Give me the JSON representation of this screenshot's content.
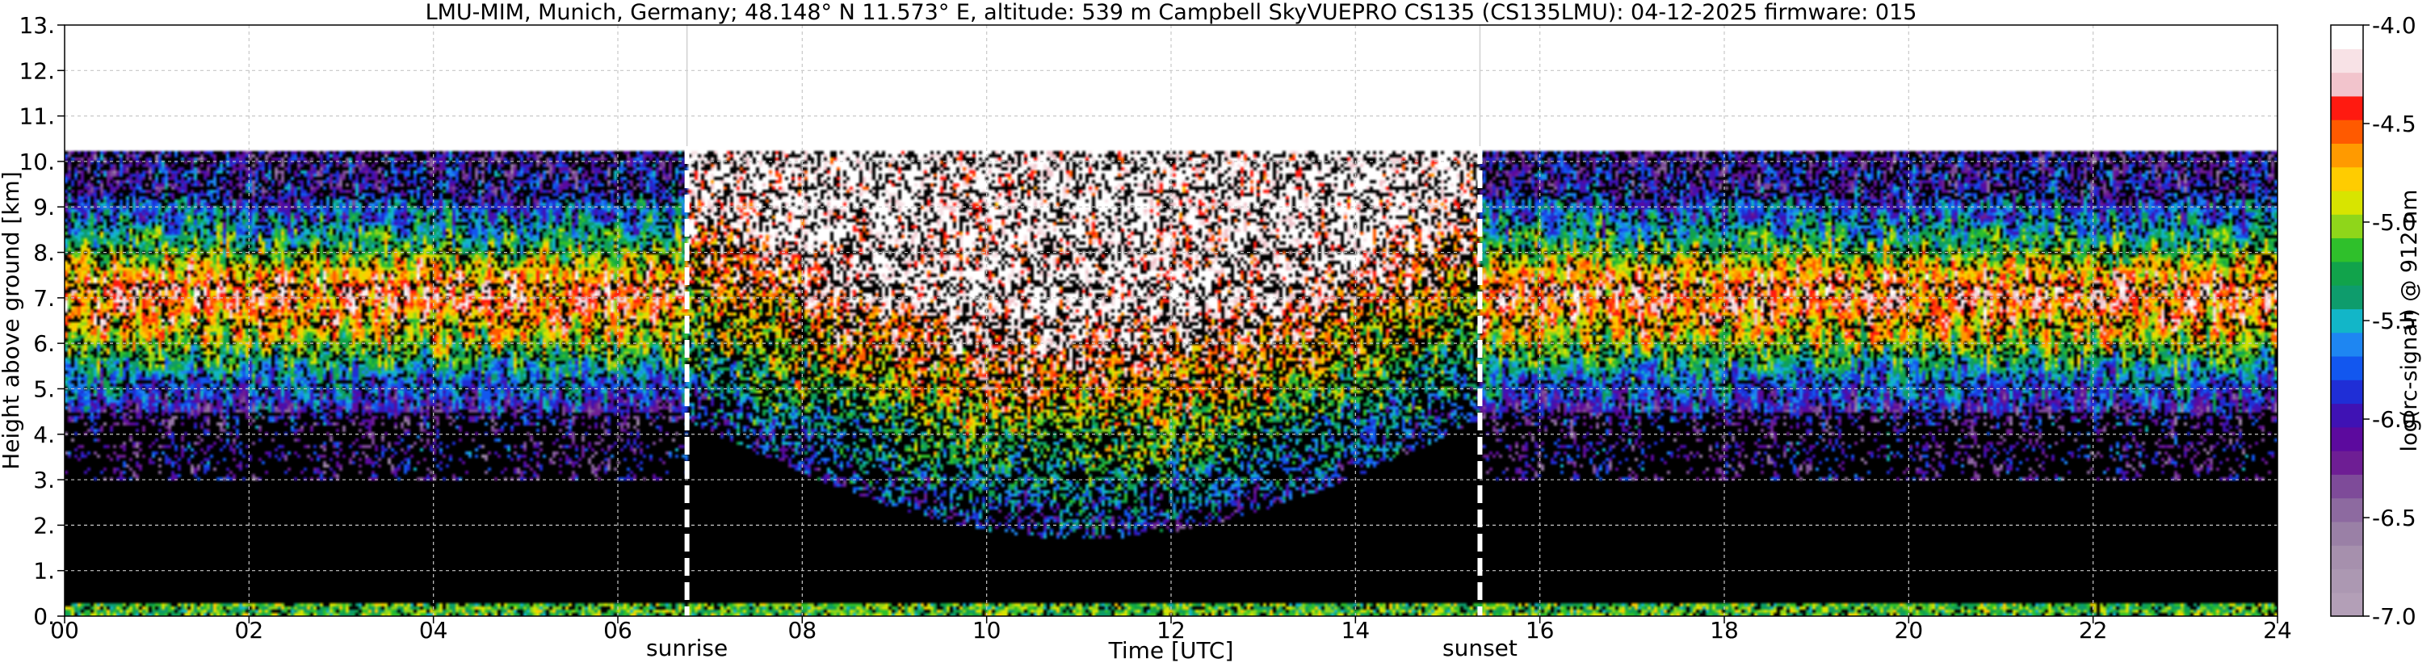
{
  "chart_data": {
    "type": "heatmap",
    "title": "LMU-MIM, Munich, Germany; 48.148° N 11.573° E, altitude: 539 m    Campbell SkyVUEPRO CS135 (CS135LMU): 04-12-2025    firmware: 015",
    "xlabel": "Time [UTC]",
    "ylabel": "Height above ground [km]",
    "xlim": [
      0,
      24
    ],
    "ylim": [
      0,
      13
    ],
    "x_ticks": [
      0,
      2,
      4,
      6,
      8,
      10,
      12,
      14,
      16,
      18,
      20,
      22,
      24
    ],
    "x_tick_labels": [
      "00",
      "02",
      "04",
      "06",
      "08",
      "10",
      "12",
      "14",
      "16",
      "18",
      "20",
      "22",
      "24"
    ],
    "y_ticks": [
      0,
      1,
      2,
      3,
      4,
      5,
      6,
      7,
      8,
      9,
      10,
      11,
      12,
      13
    ],
    "y_tick_labels": [
      "0.",
      "1.",
      "2.",
      "3.",
      "4.",
      "5.",
      "6.",
      "7.",
      "8.",
      "9.",
      "10.",
      "11.",
      "12.",
      "13."
    ],
    "grid": true,
    "data_top_km": 10.25,
    "markers": [
      {
        "label": "sunrise",
        "x": 6.75
      },
      {
        "label": "sunset",
        "x": 15.35
      }
    ],
    "colorbar": {
      "label": "log(rc-signal) @ 912 nm",
      "range": [
        -7.0,
        -4.0
      ],
      "ticks": [
        -7.0,
        -6.5,
        -6.0,
        -5.5,
        -5.0,
        -4.5,
        -4.0
      ],
      "tick_labels": [
        "-7.0",
        "-6.5",
        "-6.0",
        "-5.5",
        "-5.0",
        "-4.5",
        "-4.0"
      ],
      "colors": [
        "#b39fb7",
        "#ac98b2",
        "#a690ad",
        "#9a80a6",
        "#8d6aa0",
        "#7e4b99",
        "#6e1e94",
        "#5c0a9e",
        "#3f12b4",
        "#1f2ed6",
        "#1257ef",
        "#1e86f2",
        "#12b6c8",
        "#0e9c6c",
        "#11a34b",
        "#2fc02b",
        "#8fd61a",
        "#d8e400",
        "#ffcc00",
        "#ff9a00",
        "#ff5a00",
        "#ff1a10",
        "#f2c4cc",
        "#f8e2e6",
        "#ffffff"
      ]
    },
    "profile": {
      "note_night": "Night hours: broad elevated layer 4.5-8.5 km, signal ~ -5.5 to -4.5",
      "note_day": "Daytime: noisy background up to 10.25 km, enhanced noise (white) 6-10 km"
    },
    "segments": [
      {
        "x": [
          0,
          6.75
        ],
        "regime": "night"
      },
      {
        "x": [
          6.75,
          15.35
        ],
        "regime": "day"
      },
      {
        "x": [
          15.35,
          24
        ],
        "regime": "night"
      }
    ]
  }
}
